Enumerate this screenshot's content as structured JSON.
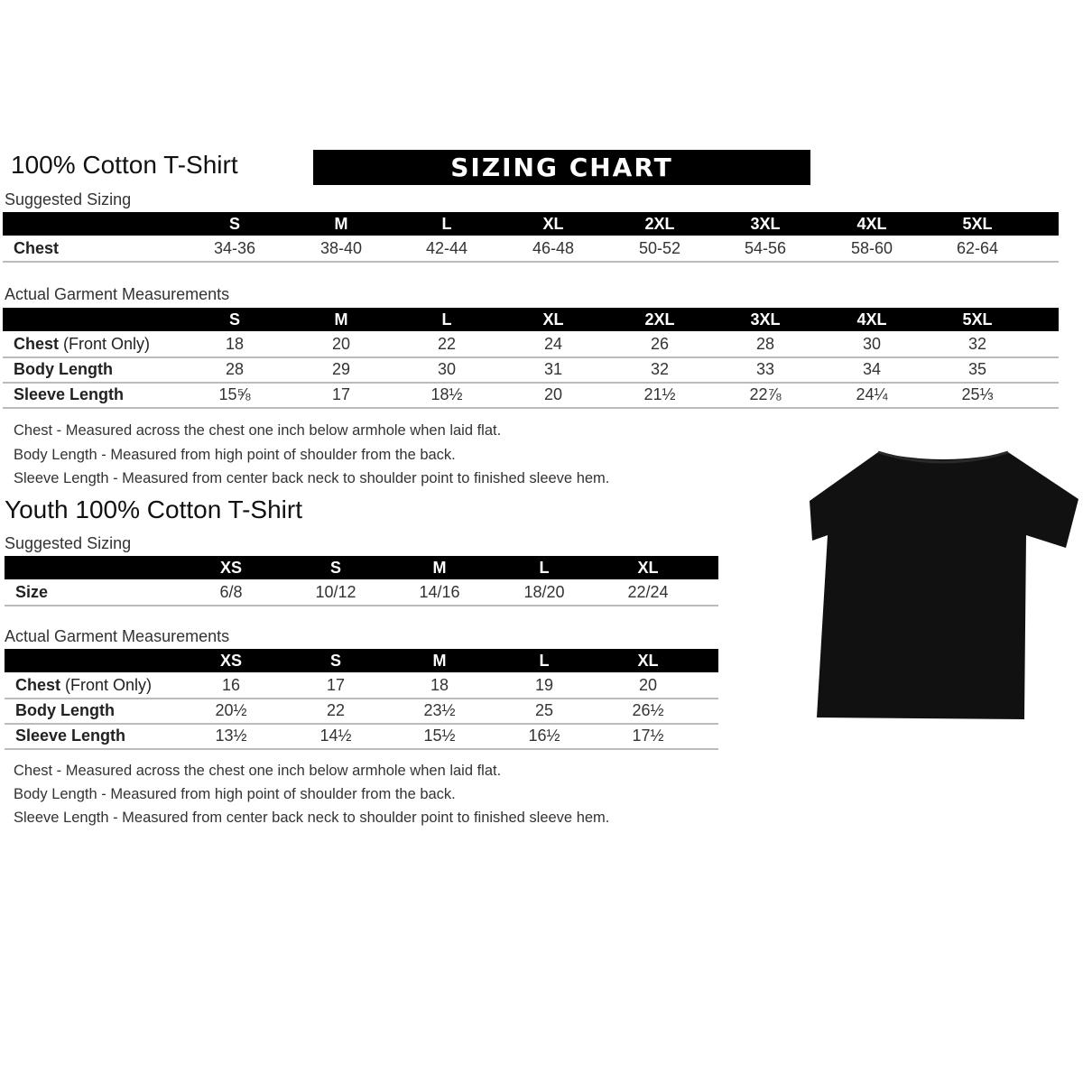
{
  "adult": {
    "title": "100% Cotton T-Shirt",
    "banner": "SIZING CHART",
    "suggested": {
      "label": "Suggested Sizing",
      "sizes": [
        "S",
        "M",
        "L",
        "XL",
        "2XL",
        "3XL",
        "4XL",
        "5XL"
      ],
      "rows": [
        {
          "label": "Chest",
          "extra": "",
          "values": [
            "34-36",
            "38-40",
            "42-44",
            "46-48",
            "50-52",
            "54-56",
            "58-60",
            "62-64"
          ]
        }
      ]
    },
    "actual": {
      "label": "Actual Garment Measurements",
      "sizes": [
        "S",
        "M",
        "L",
        "XL",
        "2XL",
        "3XL",
        "4XL",
        "5XL"
      ],
      "rows": [
        {
          "label": "Chest",
          "extra": " (Front Only)",
          "values": [
            "18",
            "20",
            "22",
            "24",
            "26",
            "28",
            "30",
            "32"
          ]
        },
        {
          "label": "Body Length",
          "extra": "",
          "values": [
            "28",
            "29",
            "30",
            "31",
            "32",
            "33",
            "34",
            "35"
          ]
        },
        {
          "label": "Sleeve Length",
          "extra": "",
          "values": [
            "15⅝",
            "17",
            "18½",
            "20",
            "21½",
            "22⅞",
            "24¼",
            "25⅓"
          ]
        }
      ]
    },
    "notes": [
      "Chest - Measured across the chest one inch below armhole when laid flat.",
      "Body Length - Measured from high point of shoulder from the back.",
      "Sleeve Length - Measured from center back neck to shoulder point to finished sleeve hem."
    ]
  },
  "youth": {
    "title": "Youth 100% Cotton T-Shirt",
    "suggested": {
      "label": "Suggested Sizing",
      "sizes": [
        "XS",
        "S",
        "M",
        "L",
        "XL"
      ],
      "rows": [
        {
          "label": "Size",
          "extra": "",
          "values": [
            "6/8",
            "10/12",
            "14/16",
            "18/20",
            "22/24"
          ]
        }
      ]
    },
    "actual": {
      "label": "Actual Garment Measurements",
      "sizes": [
        "XS",
        "S",
        "M",
        "L",
        "XL"
      ],
      "rows": [
        {
          "label": "Chest",
          "extra": " (Front Only)",
          "values": [
            "16",
            "17",
            "18",
            "19",
            "20"
          ]
        },
        {
          "label": "Body Length",
          "extra": "",
          "values": [
            "20½",
            "22",
            "23½",
            "25",
            "26½"
          ]
        },
        {
          "label": "Sleeve Length",
          "extra": "",
          "values": [
            "13½",
            "14½",
            "15½",
            "16½",
            "17½"
          ]
        }
      ]
    },
    "notes": [
      "Chest - Measured across the chest one inch below armhole when laid flat.",
      "Body Length - Measured from high point of shoulder from the back.",
      "Sleeve Length - Measured from center back neck to shoulder point to finished sleeve hem."
    ]
  },
  "image": {
    "icon": "black-t-shirt",
    "color": "#111111"
  }
}
